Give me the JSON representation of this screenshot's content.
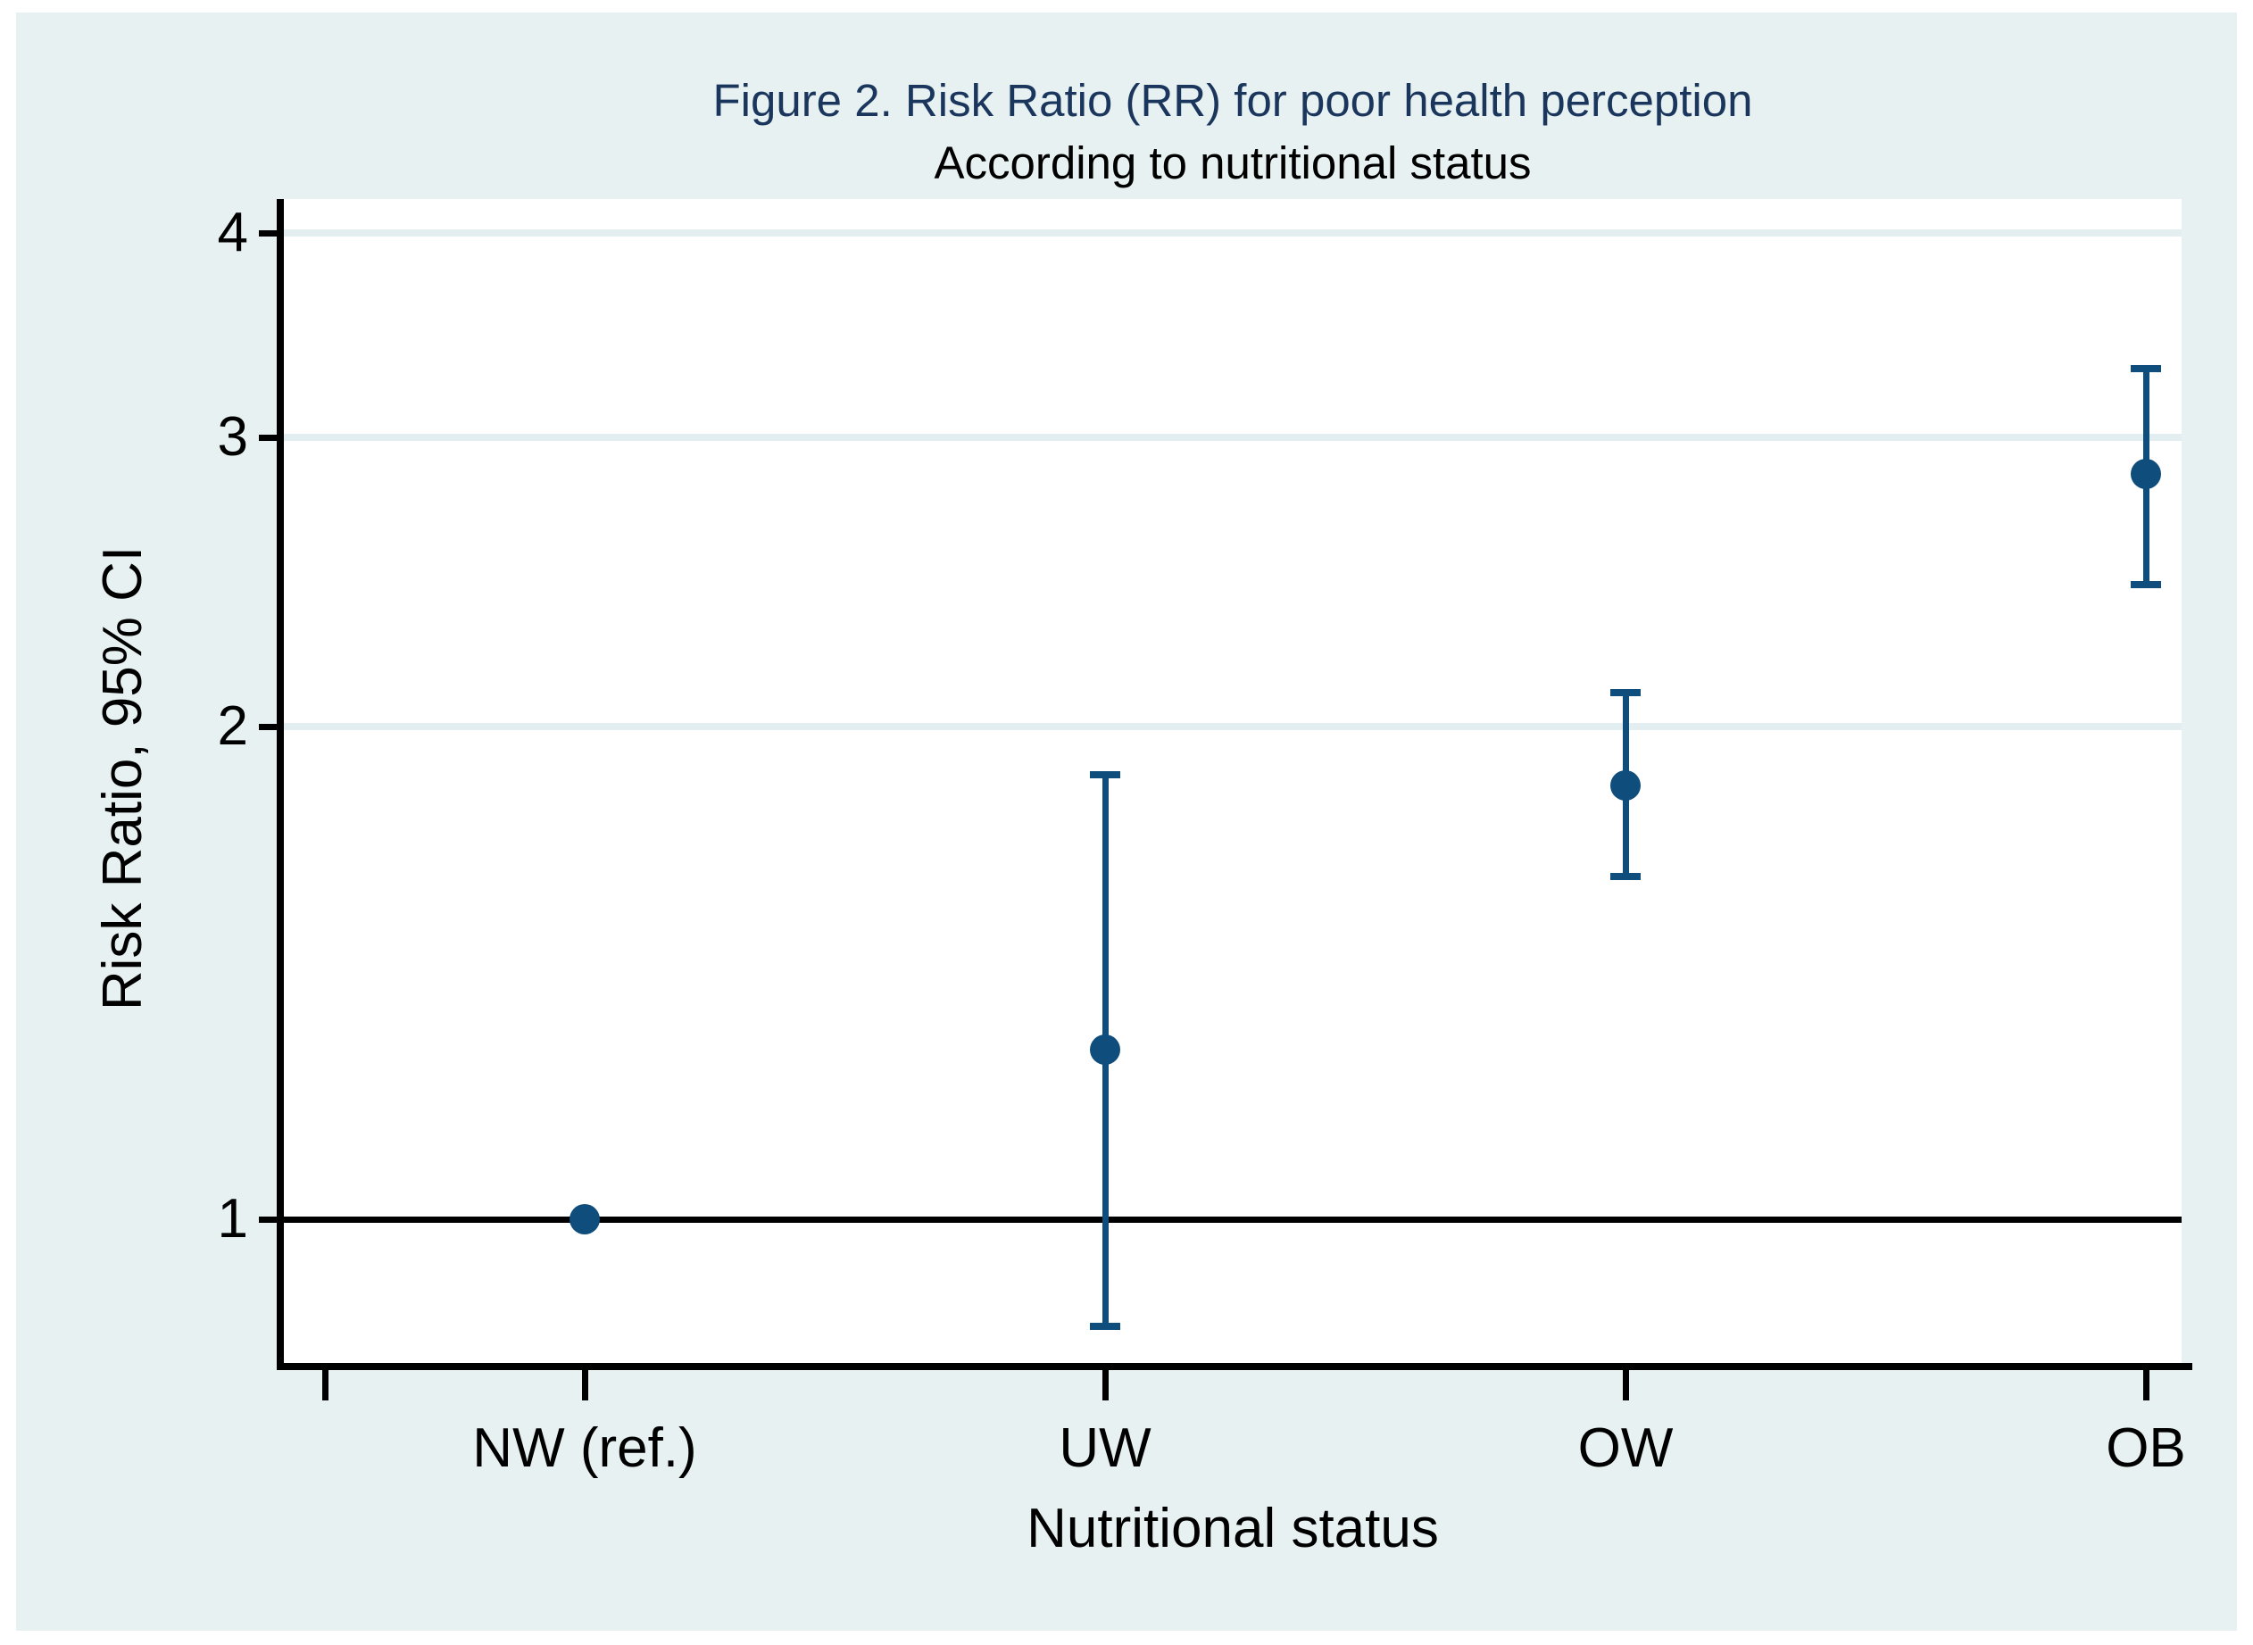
{
  "chart_data": {
    "type": "scatter",
    "title": "Figure 2. Risk Ratio (RR) for poor health perception",
    "subtitle": "According to nutritional status",
    "xlabel": "Nutritional status",
    "ylabel": "Risk Ratio, 95% CI",
    "y_scale": "log",
    "y_ticks": [
      1,
      2,
      3,
      4
    ],
    "y_tick_labels": [
      "1",
      "2",
      "3",
      "4"
    ],
    "ylim": [
      0.81,
      4.2
    ],
    "grid": true,
    "legend": "none",
    "reference_line": {
      "y": 1,
      "color": "#000000"
    },
    "categories": [
      "NW (ref.)",
      "UW",
      "OW",
      "OB"
    ],
    "series": [
      {
        "name": "Risk Ratio (95% CI)",
        "marker": "filled-circle",
        "points": [
          {
            "category": "NW (ref.)",
            "rr": 1.0,
            "ci_low": null,
            "ci_high": null
          },
          {
            "category": "UW",
            "rr": 1.27,
            "ci_low": 0.86,
            "ci_high": 1.87
          },
          {
            "category": "OW",
            "rr": 1.84,
            "ci_low": 1.62,
            "ci_high": 2.1
          },
          {
            "category": "OB",
            "rr": 2.85,
            "ci_low": 2.44,
            "ci_high": 3.31
          }
        ]
      }
    ],
    "colors": {
      "marker": "#0f4d7c",
      "ci": "#0f4d7c",
      "title": "#1b365d",
      "subtitle": "#000000",
      "graph_bg": "#e7f1f1",
      "plot_bg": "#ffffff",
      "grid": "#e3eef0",
      "axis": "#000000",
      "page_bg": "#ffffff"
    }
  }
}
